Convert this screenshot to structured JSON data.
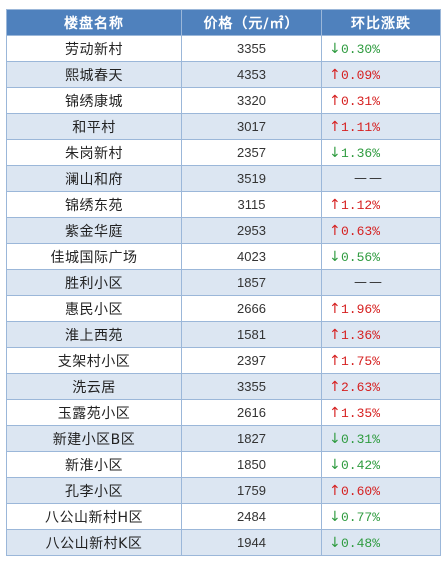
{
  "table": {
    "headers": [
      "楼盘名称",
      "价格（元/㎡）",
      "环比涨跌"
    ],
    "rows": [
      {
        "name": "劳动新村",
        "price": "3355",
        "dir": "down",
        "change": "0.30%"
      },
      {
        "name": "熙城春天",
        "price": "4353",
        "dir": "up",
        "change": "0.09%"
      },
      {
        "name": "锦绣康城",
        "price": "3320",
        "dir": "up",
        "change": "0.31%"
      },
      {
        "name": "和平村",
        "price": "3017",
        "dir": "up",
        "change": "1.11%"
      },
      {
        "name": "朱岗新村",
        "price": "2357",
        "dir": "down",
        "change": "1.36%"
      },
      {
        "name": "澜山和府",
        "price": "3519",
        "dir": "flat",
        "change": "——"
      },
      {
        "name": "锦绣东苑",
        "price": "3115",
        "dir": "up",
        "change": "1.12%"
      },
      {
        "name": "紫金华庭",
        "price": "2953",
        "dir": "up",
        "change": "0.63%"
      },
      {
        "name": "佳城国际广场",
        "price": "4023",
        "dir": "down",
        "change": "0.56%"
      },
      {
        "name": "胜利小区",
        "price": "1857",
        "dir": "flat",
        "change": "——"
      },
      {
        "name": "惠民小区",
        "price": "2666",
        "dir": "up",
        "change": "1.96%"
      },
      {
        "name": "淮上西苑",
        "price": "1581",
        "dir": "up",
        "change": "1.36%"
      },
      {
        "name": "支架村小区",
        "price": "2397",
        "dir": "up",
        "change": "1.75%"
      },
      {
        "name": "洗云居",
        "price": "3355",
        "dir": "up",
        "change": "2.63%"
      },
      {
        "name": "玉露苑小区",
        "price": "2616",
        "dir": "up",
        "change": "1.35%"
      },
      {
        "name": "新建小区B区",
        "price": "1827",
        "dir": "down",
        "change": "0.31%"
      },
      {
        "name": "新淮小区",
        "price": "1850",
        "dir": "down",
        "change": "0.42%"
      },
      {
        "name": "孔李小区",
        "price": "1759",
        "dir": "up",
        "change": "0.60%"
      },
      {
        "name": "八公山新村H区",
        "price": "2484",
        "dir": "down",
        "change": "0.77%"
      },
      {
        "name": "八公山新村K区",
        "price": "1944",
        "dir": "down",
        "change": "0.48%"
      }
    ]
  },
  "icons": {
    "up": "arrow-up-icon",
    "down": "arrow-down-icon"
  },
  "colors": {
    "header_bg": "#4f81bd",
    "alt_row_bg": "#dce6f2",
    "up": "#d62020",
    "down": "#2e9b3f"
  }
}
